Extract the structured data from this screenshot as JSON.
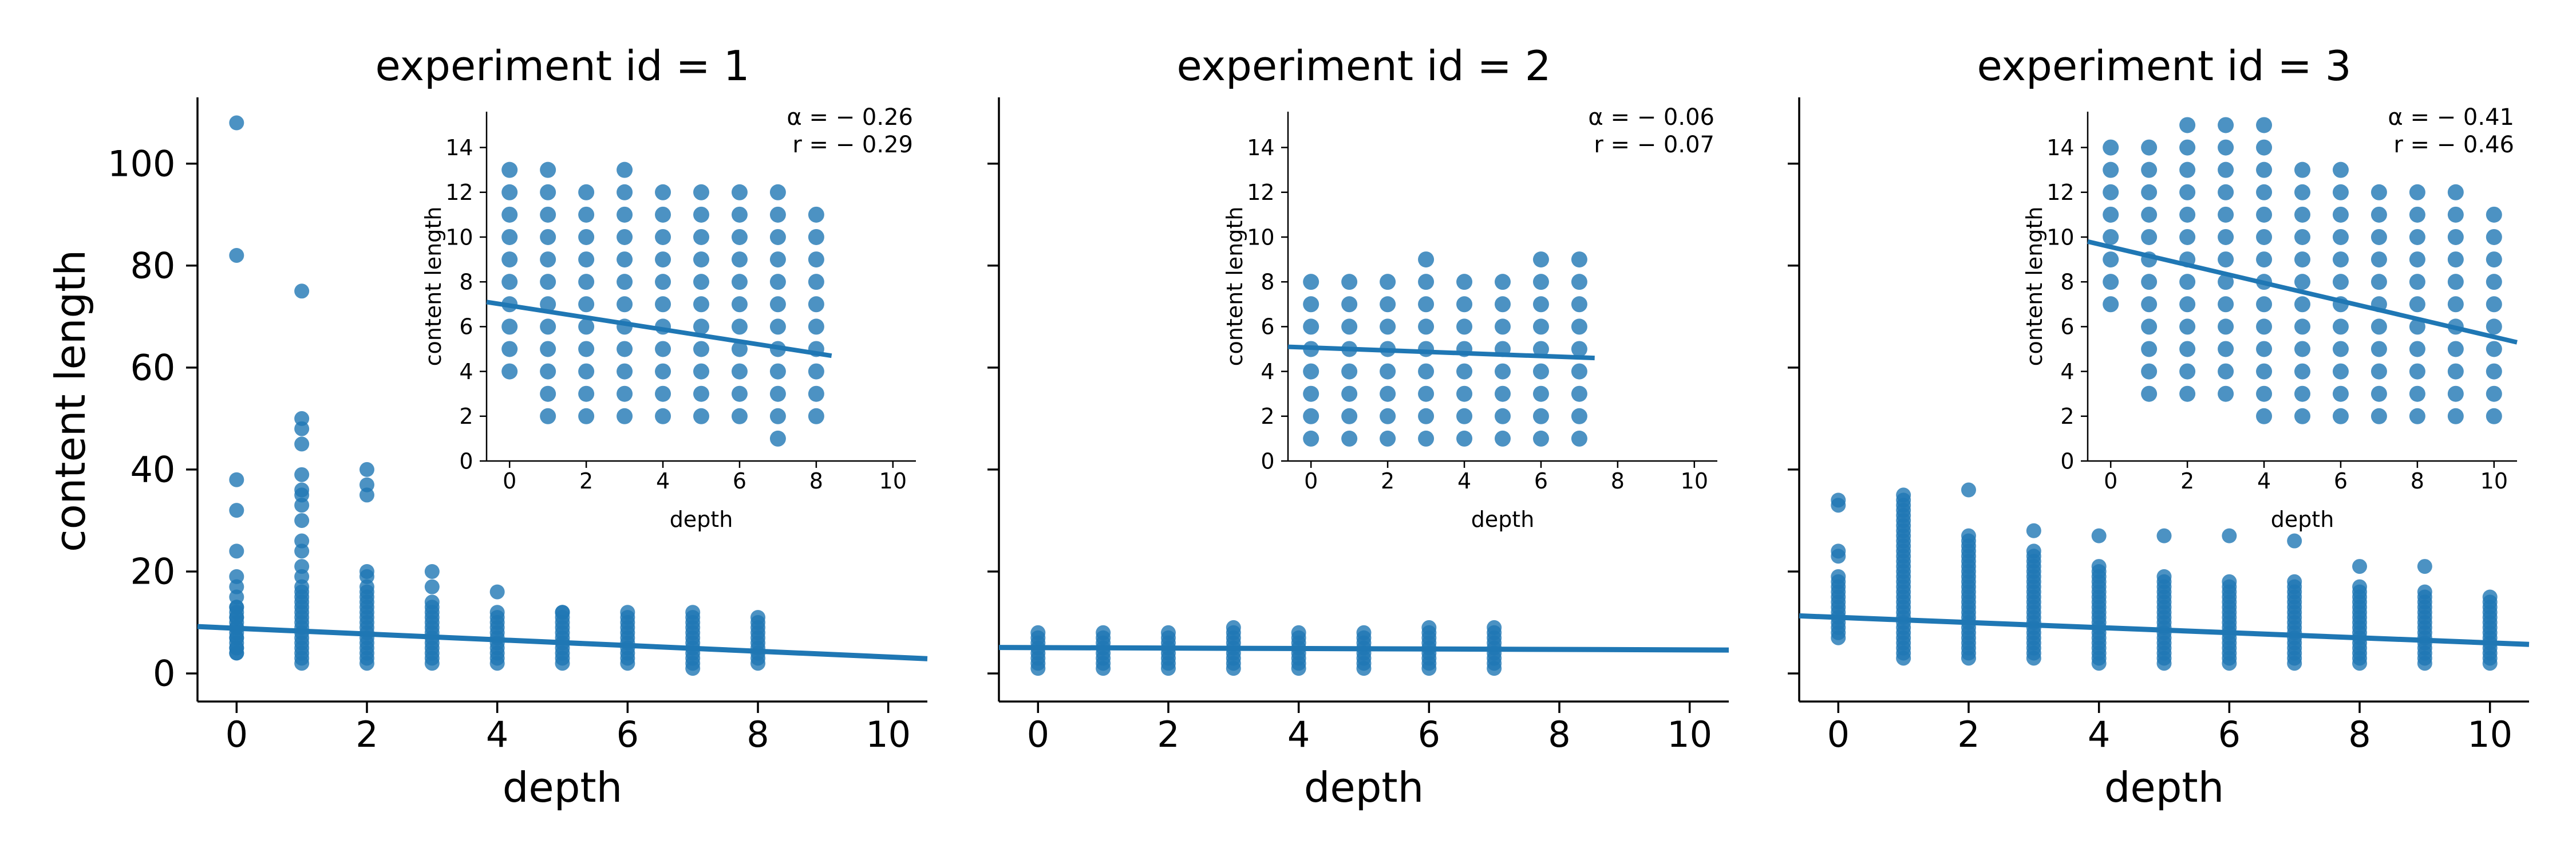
{
  "figure": {
    "ylabel": "content length",
    "xlabel": "depth"
  },
  "colors": {
    "series": "#1f77b4",
    "axis": "#000000"
  },
  "chart_data": [
    {
      "type": "scatter",
      "title": "experiment id = 1",
      "xlabel": "depth",
      "ylabel": "content length",
      "xlim": [
        -0.6,
        10.6
      ],
      "ylim": [
        -5.5,
        113
      ],
      "xticks": [
        0,
        2,
        4,
        6,
        8,
        10
      ],
      "yticks": [
        0,
        20,
        40,
        60,
        80,
        100
      ],
      "fit_line": {
        "x": [
          -0.6,
          10.6
        ],
        "y": [
          9.2,
          2.9
        ]
      },
      "outliers": [
        [
          0,
          108
        ],
        [
          0,
          82
        ],
        [
          0,
          38
        ],
        [
          0,
          32
        ],
        [
          0,
          24
        ],
        [
          0,
          19
        ],
        [
          0,
          17
        ],
        [
          0,
          15
        ],
        [
          0,
          13
        ],
        [
          0,
          11
        ],
        [
          0,
          9
        ],
        [
          0,
          7
        ],
        [
          0,
          5
        ],
        [
          0,
          4
        ],
        [
          1,
          75
        ],
        [
          1,
          50
        ],
        [
          1,
          48
        ],
        [
          1,
          45
        ],
        [
          1,
          39
        ],
        [
          1,
          36
        ],
        [
          1,
          35
        ],
        [
          1,
          33
        ],
        [
          1,
          30
        ],
        [
          1,
          26
        ],
        [
          1,
          24
        ],
        [
          1,
          21
        ],
        [
          1,
          19
        ],
        [
          1,
          17
        ],
        [
          2,
          40
        ],
        [
          2,
          37
        ],
        [
          2,
          35
        ],
        [
          2,
          20
        ],
        [
          2,
          19
        ],
        [
          2,
          17
        ],
        [
          3,
          20
        ],
        [
          3,
          17
        ],
        [
          3,
          14
        ],
        [
          4,
          16
        ],
        [
          5,
          12
        ],
        [
          6,
          12
        ],
        [
          7,
          12
        ],
        [
          8,
          11
        ]
      ],
      "columns": [
        {
          "x": 0,
          "ymin": 4,
          "ymax": 13
        },
        {
          "x": 1,
          "ymin": 2,
          "ymax": 16
        },
        {
          "x": 2,
          "ymin": 2,
          "ymax": 16
        },
        {
          "x": 3,
          "ymin": 2,
          "ymax": 13
        },
        {
          "x": 4,
          "ymin": 2,
          "ymax": 12
        },
        {
          "x": 5,
          "ymin": 2,
          "ymax": 12
        },
        {
          "x": 6,
          "ymin": 2,
          "ymax": 11
        },
        {
          "x": 7,
          "ymin": 1,
          "ymax": 11
        },
        {
          "x": 8,
          "ymin": 2,
          "ymax": 10
        }
      ],
      "inset": {
        "xlabel": "depth",
        "ylabel": "content length",
        "xlim": [
          -0.6,
          10.6
        ],
        "ylim": [
          0,
          15.6
        ],
        "xticks": [
          0,
          2,
          4,
          6,
          8,
          10
        ],
        "yticks": [
          0,
          2,
          4,
          6,
          8,
          10,
          12,
          14
        ],
        "annotation": [
          "α = − 0.26",
          "r = − 0.29"
        ],
        "fit_line": {
          "x": [
            -0.6,
            8.4
          ],
          "y": [
            7.1,
            4.7
          ]
        },
        "columns": [
          {
            "x": 0,
            "ymin": 4,
            "ymax": 13
          },
          {
            "x": 1,
            "ymin": 2,
            "ymax": 13
          },
          {
            "x": 2,
            "ymin": 2,
            "ymax": 12
          },
          {
            "x": 3,
            "ymin": 2,
            "ymax": 13
          },
          {
            "x": 4,
            "ymin": 2,
            "ymax": 12
          },
          {
            "x": 5,
            "ymin": 2,
            "ymax": 12
          },
          {
            "x": 6,
            "ymin": 2,
            "ymax": 12
          },
          {
            "x": 7,
            "ymin": 1,
            "ymax": 12
          },
          {
            "x": 8,
            "ymin": 2,
            "ymax": 11
          }
        ]
      }
    },
    {
      "type": "scatter",
      "title": "experiment id = 2",
      "xlabel": "depth",
      "ylabel": "",
      "xlim": [
        -0.6,
        10.6
      ],
      "ylim": [
        -5.5,
        113
      ],
      "xticks": [
        0,
        2,
        4,
        6,
        8,
        10
      ],
      "yticks": [
        0,
        20,
        40,
        60,
        80,
        100
      ],
      "fit_line": {
        "x": [
          -0.6,
          10.6
        ],
        "y": [
          5.1,
          4.6
        ]
      },
      "outliers": [],
      "columns": [
        {
          "x": 0,
          "ymin": 1,
          "ymax": 8
        },
        {
          "x": 1,
          "ymin": 1,
          "ymax": 8
        },
        {
          "x": 2,
          "ymin": 1,
          "ymax": 8
        },
        {
          "x": 3,
          "ymin": 1,
          "ymax": 9
        },
        {
          "x": 4,
          "ymin": 1,
          "ymax": 8
        },
        {
          "x": 5,
          "ymin": 1,
          "ymax": 8
        },
        {
          "x": 6,
          "ymin": 1,
          "ymax": 9
        },
        {
          "x": 7,
          "ymin": 1,
          "ymax": 9
        }
      ],
      "inset": {
        "xlabel": "depth",
        "ylabel": "content length",
        "xlim": [
          -0.6,
          10.6
        ],
        "ylim": [
          0,
          15.6
        ],
        "xticks": [
          0,
          2,
          4,
          6,
          8,
          10
        ],
        "yticks": [
          0,
          2,
          4,
          6,
          8,
          10,
          12,
          14
        ],
        "annotation": [
          "α = − 0.06",
          "r = − 0.07"
        ],
        "fit_line": {
          "x": [
            -0.6,
            7.4
          ],
          "y": [
            5.1,
            4.6
          ]
        },
        "columns": [
          {
            "x": 0,
            "ymin": 1,
            "ymax": 8
          },
          {
            "x": 1,
            "ymin": 1,
            "ymax": 8
          },
          {
            "x": 2,
            "ymin": 1,
            "ymax": 8
          },
          {
            "x": 3,
            "ymin": 1,
            "ymax": 9
          },
          {
            "x": 4,
            "ymin": 1,
            "ymax": 8
          },
          {
            "x": 5,
            "ymin": 1,
            "ymax": 8
          },
          {
            "x": 6,
            "ymin": 1,
            "ymax": 9
          },
          {
            "x": 7,
            "ymin": 1,
            "ymax": 9
          }
        ]
      }
    },
    {
      "type": "scatter",
      "title": "experiment id = 3",
      "xlabel": "depth",
      "ylabel": "",
      "xlim": [
        -0.6,
        10.6
      ],
      "ylim": [
        -5.5,
        113
      ],
      "xticks": [
        0,
        2,
        4,
        6,
        8,
        10
      ],
      "yticks": [
        0,
        20,
        40,
        60,
        80,
        100
      ],
      "fit_line": {
        "x": [
          -0.6,
          10.6
        ],
        "y": [
          11.3,
          5.7
        ]
      },
      "outliers": [
        [
          0,
          34
        ],
        [
          0,
          33
        ],
        [
          0,
          24
        ],
        [
          0,
          23
        ],
        [
          1,
          35
        ],
        [
          1,
          34
        ],
        [
          2,
          36
        ],
        [
          3,
          28
        ],
        [
          4,
          27
        ],
        [
          5,
          27
        ],
        [
          6,
          27
        ],
        [
          7,
          26
        ],
        [
          8,
          21
        ],
        [
          9,
          21
        ]
      ],
      "columns": [
        {
          "x": 0,
          "ymin": 7,
          "ymax": 19
        },
        {
          "x": 1,
          "ymin": 3,
          "ymax": 33
        },
        {
          "x": 2,
          "ymin": 3,
          "ymax": 27
        },
        {
          "x": 3,
          "ymin": 3,
          "ymax": 24
        },
        {
          "x": 4,
          "ymin": 2,
          "ymax": 21
        },
        {
          "x": 5,
          "ymin": 2,
          "ymax": 19
        },
        {
          "x": 6,
          "ymin": 2,
          "ymax": 18
        },
        {
          "x": 7,
          "ymin": 2,
          "ymax": 18
        },
        {
          "x": 8,
          "ymin": 2,
          "ymax": 17
        },
        {
          "x": 9,
          "ymin": 2,
          "ymax": 16
        },
        {
          "x": 10,
          "ymin": 2,
          "ymax": 15
        }
      ],
      "inset": {
        "xlabel": "depth",
        "ylabel": "content length",
        "xlim": [
          -0.6,
          10.6
        ],
        "ylim": [
          0,
          15.6
        ],
        "xticks": [
          0,
          2,
          4,
          6,
          8,
          10
        ],
        "yticks": [
          0,
          2,
          4,
          6,
          8,
          10,
          12,
          14
        ],
        "annotation": [
          "α = − 0.41",
          "r = − 0.46"
        ],
        "fit_line": {
          "x": [
            -0.6,
            10.6
          ],
          "y": [
            9.8,
            5.3
          ]
        },
        "columns": [
          {
            "x": 0,
            "ymin": 7,
            "ymax": 14
          },
          {
            "x": 1,
            "ymin": 3,
            "ymax": 14
          },
          {
            "x": 2,
            "ymin": 3,
            "ymax": 15
          },
          {
            "x": 3,
            "ymin": 3,
            "ymax": 15
          },
          {
            "x": 4,
            "ymin": 2,
            "ymax": 15
          },
          {
            "x": 5,
            "ymin": 2,
            "ymax": 13
          },
          {
            "x": 6,
            "ymin": 2,
            "ymax": 13
          },
          {
            "x": 7,
            "ymin": 2,
            "ymax": 12
          },
          {
            "x": 8,
            "ymin": 2,
            "ymax": 12
          },
          {
            "x": 9,
            "ymin": 2,
            "ymax": 12
          },
          {
            "x": 10,
            "ymin": 2,
            "ymax": 11
          }
        ]
      }
    }
  ]
}
